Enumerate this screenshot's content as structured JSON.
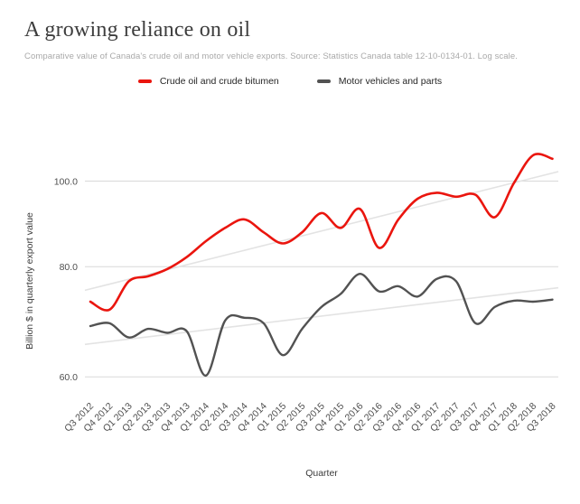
{
  "header": {
    "title": "A growing reliance on oil",
    "subtitle": "Comparative value of Canada's crude oil and motor vehicle exports. Source: Statistics Canada table 12-10-0134-01. Log scale."
  },
  "legend": [
    {
      "label": "Crude oil and crude bitumen",
      "color": "#ea150e"
    },
    {
      "label": "Motor vehicles and parts",
      "color": "#525252"
    }
  ],
  "chart_data": {
    "type": "line",
    "title": "A growing reliance on oil",
    "xlabel": "Quarter",
    "ylabel": "Billion $ in quarterly export value",
    "log_scale": true,
    "grid": "horizontal-only",
    "legend_position": "top-center",
    "ylim": [
      56,
      110
    ],
    "yticks": [
      60.0,
      80.0,
      100.0
    ],
    "ytick_labels": [
      "60.0",
      "80.0",
      "100.0"
    ],
    "x": [
      "Q3 2012",
      "Q4 2012",
      "Q1 2013",
      "Q2 2013",
      "Q3 2013",
      "Q4 2013",
      "Q1 2014",
      "Q2 2014",
      "Q3 2014",
      "Q4 2014",
      "Q1 2015",
      "Q2 2015",
      "Q3 2015",
      "Q4 2015",
      "Q1 2016",
      "Q2 2016",
      "Q3 2016",
      "Q4 2016",
      "Q1 2017",
      "Q2 2017",
      "Q3 2017",
      "Q4 2017",
      "Q1 2018",
      "Q2 2018",
      "Q3 2018"
    ],
    "series": [
      {
        "id": "crude-oil",
        "name": "Crude oil and crude bitumen",
        "color": "#ea150e",
        "width": 2.6,
        "values": [
          73,
          71.5,
          77,
          78,
          79.5,
          82,
          85.5,
          88.5,
          90.5,
          87.5,
          85,
          87.5,
          92,
          88.5,
          93,
          84,
          90.5,
          95.5,
          97,
          96,
          96.5,
          91,
          99.5,
          107,
          106
        ],
        "trend": [
          75.2,
          102.5
        ]
      },
      {
        "id": "motor-vehicles",
        "name": "Motor vehicles and parts",
        "color": "#525252",
        "width": 2.4,
        "values": [
          68.5,
          69,
          66.5,
          68,
          67.3,
          67.6,
          60.2,
          69.5,
          70,
          69,
          63.5,
          68,
          72,
          74.5,
          78.5,
          75,
          76,
          74,
          77.5,
          77,
          69,
          72,
          73.2,
          73,
          73.4
        ],
        "trend": [
          65.3,
          75.7
        ]
      }
    ],
    "grid_color": "#d9d9d9",
    "trend_color": "#e3e3e3",
    "tick_color": "#4f4f4f",
    "axis_title_color": "#3b3b3b"
  }
}
